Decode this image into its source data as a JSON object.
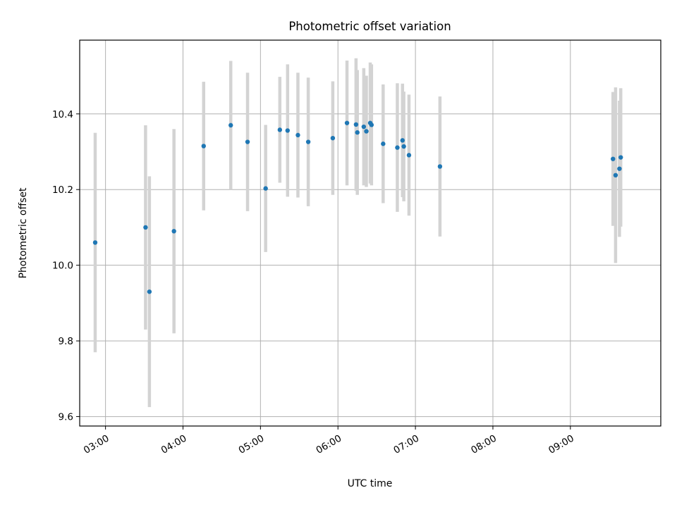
{
  "chart_data": {
    "type": "scatter",
    "title": "Photometric offset variation",
    "xlabel": "UTC time",
    "ylabel": "Photometric offset",
    "x_axis": {
      "kind": "time",
      "range": [
        "02:40",
        "10:10"
      ],
      "ticks": [
        "03:00",
        "04:00",
        "05:00",
        "06:00",
        "07:00",
        "08:00",
        "09:00"
      ],
      "tick_label_rotation": "30deg"
    },
    "y_axis": {
      "range": [
        9.575,
        10.595
      ],
      "ticks": [
        9.6,
        9.8,
        10.0,
        10.2,
        10.4
      ],
      "tick_labels": [
        "9.6",
        "9.8",
        "10.0",
        "10.2",
        "10.4"
      ]
    },
    "grid": true,
    "legend": "none",
    "colors": {
      "point": "#1f77b4",
      "errorbar": "#d3d3d3",
      "grid": "#b0b0b0"
    },
    "series": [
      {
        "points": [
          {
            "x": "02:52",
            "y": 10.06,
            "err": 0.29
          },
          {
            "x": "03:31",
            "y": 10.1,
            "err": 0.27
          },
          {
            "x": "03:34",
            "y": 9.93,
            "err": 0.305
          },
          {
            "x": "03:53",
            "y": 10.09,
            "err": 0.27
          },
          {
            "x": "04:16",
            "y": 10.315,
            "err": 0.17
          },
          {
            "x": "04:37",
            "y": 10.37,
            "err": 0.17
          },
          {
            "x": "04:50",
            "y": 10.326,
            "err": 0.183
          },
          {
            "x": "05:04",
            "y": 10.203,
            "err": 0.168
          },
          {
            "x": "05:15",
            "y": 10.358,
            "err": 0.14
          },
          {
            "x": "05:21",
            "y": 10.356,
            "err": 0.175
          },
          {
            "x": "05:29",
            "y": 10.344,
            "err": 0.165
          },
          {
            "x": "05:37",
            "y": 10.326,
            "err": 0.17
          },
          {
            "x": "05:56",
            "y": 10.336,
            "err": 0.15
          },
          {
            "x": "06:07",
            "y": 10.376,
            "err": 0.165
          },
          {
            "x": "06:14",
            "y": 10.372,
            "err": 0.175
          },
          {
            "x": "06:15",
            "y": 10.351,
            "err": 0.165
          },
          {
            "x": "06:20",
            "y": 10.366,
            "err": 0.155
          },
          {
            "x": "06:22",
            "y": 10.354,
            "err": 0.147
          },
          {
            "x": "06:25",
            "y": 10.376,
            "err": 0.16
          },
          {
            "x": "06:26",
            "y": 10.371,
            "err": 0.16
          },
          {
            "x": "06:35",
            "y": 10.321,
            "err": 0.157
          },
          {
            "x": "06:46",
            "y": 10.311,
            "err": 0.17
          },
          {
            "x": "06:50",
            "y": 10.33,
            "err": 0.15
          },
          {
            "x": "06:51",
            "y": 10.314,
            "err": 0.145
          },
          {
            "x": "06:55",
            "y": 10.291,
            "err": 0.16
          },
          {
            "x": "07:19",
            "y": 10.261,
            "err": 0.185
          },
          {
            "x": "09:33",
            "y": 10.281,
            "err": 0.177
          },
          {
            "x": "09:35",
            "y": 10.238,
            "err": 0.232
          },
          {
            "x": "09:38",
            "y": 10.255,
            "err": 0.18
          },
          {
            "x": "09:39",
            "y": 10.285,
            "err": 0.183
          }
        ]
      }
    ]
  }
}
